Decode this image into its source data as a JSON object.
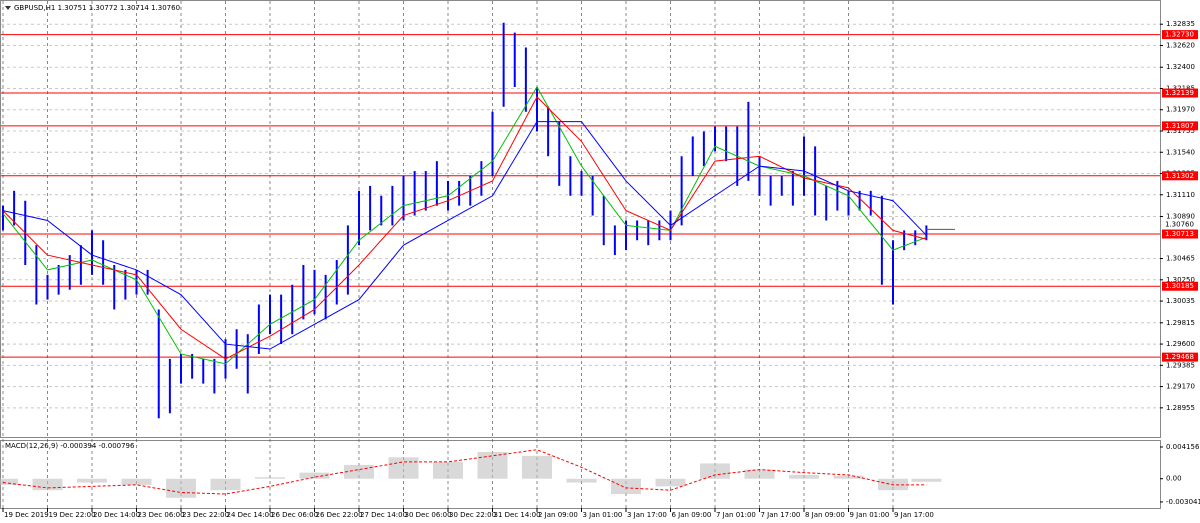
{
  "chart_data": {
    "type": "ohlc",
    "title": "GBPUSD,H1  1.30751 1.30772 1.30714 1.30760",
    "categories": [
      "19 Dec 2019",
      "19 Dec 22:00",
      "20 Dec 14:00",
      "23 Dec 06:00",
      "23 Dec 22:00",
      "24 Dec 14:00",
      "26 Dec 06:00",
      "26 Dec 22:00",
      "27 Dec 14:00",
      "30 Dec 06:00",
      "30 Dec 22:00",
      "31 Dec 14:00",
      "2 Jan 09:00",
      "3 Jan 01:00",
      "3 Jan 17:00",
      "6 Jan 09:00",
      "7 Jan 01:00",
      "7 Jan 17:00",
      "8 Jan 09:00",
      "9 Jan 01:00",
      "9 Jan 17:00"
    ],
    "ylim": [
      1.2866,
      1.3308
    ],
    "yticks": [
      1.32835,
      {
        "value": 1.3262,
        "label": "1.32620"
      },
      {
        "value": 1.324,
        "label": "1.32400"
      },
      1.32185,
      {
        "value": 1.3197,
        "label": "1.31970"
      },
      1.31755,
      {
        "value": 1.3154,
        "label": "1.31540"
      },
      1.31325,
      {
        "value": 1.3111,
        "label": "1.31110"
      },
      {
        "value": 1.3089,
        "label": "1.30890"
      },
      1.30465,
      {
        "value": 1.3025,
        "label": "1.30250"
      },
      1.30035,
      1.29815,
      {
        "value": 1.296,
        "label": "1.29600"
      },
      1.29385,
      {
        "value": 1.2917,
        "label": "1.29170"
      },
      1.28955
    ],
    "grid": true,
    "price": {
      "color": "#0000ff",
      "high": [
        1.31,
        1.3115,
        1.3105,
        1.306,
        1.303,
        1.304,
        1.305,
        1.306,
        1.3075,
        1.3065,
        1.304,
        1.3035,
        1.3035,
        1.3035,
        1.2995,
        1.2945,
        1.295,
        1.295,
        1.2945,
        1.2945,
        1.2965,
        1.2975,
        1.297,
        1.3,
        1.301,
        1.301,
        1.302,
        1.304,
        1.3035,
        1.303,
        1.3045,
        1.308,
        1.3115,
        1.312,
        1.311,
        1.312,
        1.313,
        1.3135,
        1.3135,
        1.3145,
        1.3125,
        1.3125,
        1.313,
        1.3145,
        1.3195,
        1.3285,
        1.3275,
        1.326,
        1.322,
        1.32,
        1.3185,
        1.315,
        1.3135,
        1.313,
        1.311,
        1.308,
        1.3085,
        1.3085,
        1.3085,
        1.3085,
        1.3095,
        1.315,
        1.317,
        1.3175,
        1.318,
        1.318,
        1.318,
        1.3205,
        1.315,
        1.313,
        1.313,
        1.3135,
        1.317,
        1.316,
        1.312,
        1.3125,
        1.3115,
        1.3115,
        1.3115,
        1.311,
        1.3065,
        1.3075,
        1.3075,
        1.308
      ],
      "low": [
        1.3075,
        1.308,
        1.304,
        1.3,
        1.3005,
        1.301,
        1.3015,
        1.302,
        1.303,
        1.302,
        1.2995,
        1.3005,
        1.301,
        1.301,
        1.2885,
        1.289,
        1.292,
        1.2925,
        1.292,
        1.291,
        1.2925,
        1.2935,
        1.291,
        1.295,
        1.297,
        1.296,
        1.297,
        1.2985,
        1.299,
        1.2985,
        1.3,
        1.301,
        1.306,
        1.3075,
        1.308,
        1.308,
        1.3085,
        1.309,
        1.3095,
        1.31,
        1.3095,
        1.31,
        1.31,
        1.311,
        1.313,
        1.32,
        1.322,
        1.3195,
        1.3175,
        1.315,
        1.312,
        1.311,
        1.311,
        1.309,
        1.306,
        1.305,
        1.3055,
        1.3065,
        1.306,
        1.3065,
        1.3065,
        1.308,
        1.313,
        1.314,
        1.3155,
        1.3145,
        1.312,
        1.3125,
        1.311,
        1.31,
        1.311,
        1.31,
        1.311,
        1.309,
        1.3085,
        1.3095,
        1.309,
        1.3095,
        1.309,
        1.302,
        1.3,
        1.3055,
        1.306,
        1.3065
      ]
    },
    "x": [
      0,
      4,
      8,
      12,
      16,
      20,
      24,
      28,
      32,
      36,
      40,
      44,
      48,
      52,
      56,
      60,
      64,
      68,
      72,
      76,
      80,
      83
    ],
    "series": [
      {
        "color": "#00c000",
        "values": [
          1.3092,
          1.3035,
          1.3045,
          1.3025,
          1.295,
          1.294,
          1.298,
          1.3005,
          1.3065,
          1.31,
          1.311,
          1.3145,
          1.322,
          1.314,
          1.308,
          1.3075,
          1.316,
          1.314,
          1.313,
          1.311,
          1.3055,
          1.3068
        ]
      },
      {
        "color": "#ff0000",
        "values": [
          1.3095,
          1.305,
          1.304,
          1.303,
          1.2975,
          1.2945,
          1.2968,
          1.2995,
          1.304,
          1.309,
          1.3105,
          1.3125,
          1.321,
          1.3165,
          1.3095,
          1.3075,
          1.3145,
          1.315,
          1.3128,
          1.3118,
          1.3075,
          1.3066
        ]
      },
      {
        "color": "#0000ff",
        "values": [
          1.3095,
          1.3085,
          1.305,
          1.3035,
          1.301,
          1.296,
          1.2955,
          1.298,
          1.3005,
          1.306,
          1.3085,
          1.311,
          1.3185,
          1.3185,
          1.3125,
          1.308,
          1.311,
          1.314,
          1.3135,
          1.3115,
          1.3105,
          1.307
        ]
      }
    ],
    "levels": [
      {
        "value": 1.3273,
        "label": "1.32730"
      },
      {
        "value": 1.32139,
        "label": "1.32139"
      },
      {
        "value": 1.31807,
        "label": "1.31807"
      },
      {
        "value": 1.31302,
        "label": "1.31302"
      },
      {
        "value": 1.30713,
        "label": "1.30713"
      },
      {
        "value": 1.30185,
        "label": "1.30185"
      },
      {
        "value": 1.29468,
        "label": "1.29468"
      }
    ],
    "level_color": "#ff0000",
    "bid": {
      "value": 1.3076,
      "label": "1.30760"
    },
    "macd": {
      "title": "MACD(12,26,9) -0.000394 -0.000796",
      "ylim": [
        -0.00383,
        0.00507
      ],
      "yticks": [
        0.004156,
        {
          "value": 0,
          "label": "0.00"
        },
        -0.003041
      ],
      "histogram": [
        -0.0008,
        -0.0015,
        -0.0005,
        -0.0008,
        -0.0025,
        -0.0015,
        0.0002,
        0.0008,
        0.0018,
        0.0028,
        0.0022,
        0.0035,
        0.003,
        -0.0005,
        -0.002,
        -0.001,
        0.002,
        0.0012,
        0.0005,
        0.0004,
        -0.0015,
        -0.0004
      ],
      "signal": [
        -0.0005,
        -0.0012,
        -0.001,
        -0.0008,
        -0.0018,
        -0.002,
        -0.001,
        0.0002,
        0.0012,
        0.0022,
        0.0022,
        0.003,
        0.0038,
        0.0015,
        -0.0012,
        -0.0015,
        0.0005,
        0.0012,
        0.0008,
        0.0005,
        -0.0008,
        -0.0008
      ],
      "histogram_color": "#c0c0c0",
      "signal_color": "#ff0000"
    }
  }
}
